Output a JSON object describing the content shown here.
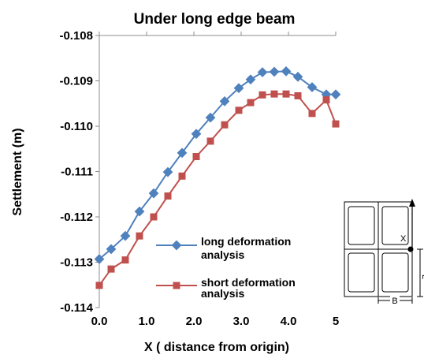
{
  "chart_data": {
    "type": "line",
    "title": "Under long edge beam",
    "xlabel": "X ( distance from origin)",
    "ylabel": "Settlement (m)",
    "xlim": [
      0,
      5
    ],
    "ylim": [
      -0.114,
      -0.108
    ],
    "x_ticks": [
      "0.0",
      "1.0",
      "2.0",
      "3.0",
      "4.0",
      "5"
    ],
    "y_ticks": [
      "-0.108",
      "-0.109",
      "-0.110",
      "-0.111",
      "-0.112",
      "-0.113",
      "-0.114"
    ],
    "grid": false,
    "legend_position": "lower-center",
    "colors": {
      "long": "#4F81BD",
      "short": "#C0504D"
    },
    "series": [
      {
        "name": "long deformation analysis",
        "marker": "diamond",
        "x": [
          0.0,
          0.25,
          0.55,
          0.85,
          1.15,
          1.45,
          1.75,
          2.05,
          2.35,
          2.65,
          2.95,
          3.2,
          3.45,
          3.7,
          3.95,
          4.2,
          4.5,
          4.8,
          5.0
        ],
        "y": [
          -0.11293,
          -0.11271,
          -0.11242,
          -0.11188,
          -0.11148,
          -0.11101,
          -0.11059,
          -0.11017,
          -0.10981,
          -0.10945,
          -0.10916,
          -0.10897,
          -0.10881,
          -0.1088,
          -0.10879,
          -0.10891,
          -0.10914,
          -0.1093,
          -0.1093
        ]
      },
      {
        "name": "short deformation analysis",
        "marker": "square",
        "x": [
          0.0,
          0.25,
          0.55,
          0.85,
          1.15,
          1.45,
          1.75,
          2.05,
          2.35,
          2.65,
          2.95,
          3.2,
          3.45,
          3.7,
          3.95,
          4.2,
          4.5,
          4.8,
          5.0
        ],
        "y": [
          -0.11351,
          -0.11315,
          -0.11295,
          -0.11242,
          -0.112,
          -0.11154,
          -0.1111,
          -0.11067,
          -0.11033,
          -0.10997,
          -0.10965,
          -0.10948,
          -0.10931,
          -0.10929,
          -0.10929,
          -0.10933,
          -0.10972,
          -0.10942,
          -0.10995
        ]
      }
    ]
  },
  "legend": {
    "long_line1": "long deformation",
    "long_line2": "analysis",
    "short_line1": "short deformation",
    "short_line2": "analysis"
  },
  "diagram": {
    "x_label": "X",
    "b_label": "B",
    "l_label": "L"
  }
}
